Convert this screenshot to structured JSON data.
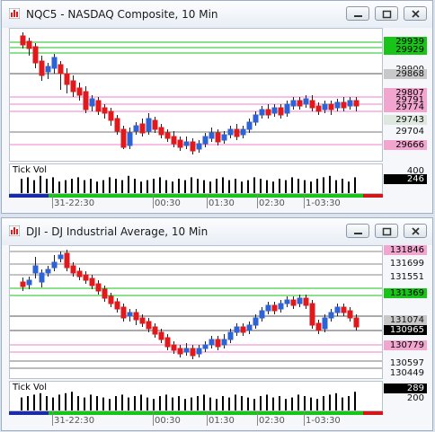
{
  "windows": [
    {
      "title": "NQC5 - NASDAQ Composite, 10 Min",
      "price_labels": [
        {
          "text": "29939",
          "style": "green"
        },
        {
          "text": "29929",
          "style": "green"
        },
        {
          "text": "29900",
          "style": "plain"
        },
        {
          "text": "29868",
          "style": "gray"
        },
        {
          "text": "29807",
          "style": "pink"
        },
        {
          "text": "29791",
          "style": "pink"
        },
        {
          "text": "29774",
          "style": "pink"
        },
        {
          "text": "29743",
          "style": "light"
        },
        {
          "text": "29704",
          "style": "plain"
        },
        {
          "text": "29666",
          "style": "pink"
        }
      ],
      "volume": {
        "label": "Tick Vol",
        "scale": "400",
        "current": "246"
      },
      "time_labels": [
        "31-22:30",
        "00:30",
        "01:30",
        "02:30",
        "1-03:30"
      ]
    },
    {
      "title": "DJI - DJ Industrial Average, 10 Min",
      "price_labels": [
        {
          "text": "131846",
          "style": "pink"
        },
        {
          "text": "131699",
          "style": "plain"
        },
        {
          "text": "131551",
          "style": "plain"
        },
        {
          "text": "131369",
          "style": "green"
        },
        {
          "text": "131074",
          "style": "gray"
        },
        {
          "text": "130965",
          "style": "black"
        },
        {
          "text": "130779",
          "style": "pink"
        },
        {
          "text": "130597",
          "style": "plain"
        },
        {
          "text": "130449",
          "style": "plain"
        }
      ],
      "volume": {
        "label": "Tick Vol",
        "scale": "200",
        "current": "289"
      },
      "time_labels": [
        "31-22:30",
        "00:30",
        "01:30",
        "02:30",
        "1-03:30"
      ]
    }
  ],
  "colors": {
    "up": "#2e63d6",
    "down": "#e0191d",
    "green_line": "#19c419",
    "pink_line": "#f082c8"
  }
}
